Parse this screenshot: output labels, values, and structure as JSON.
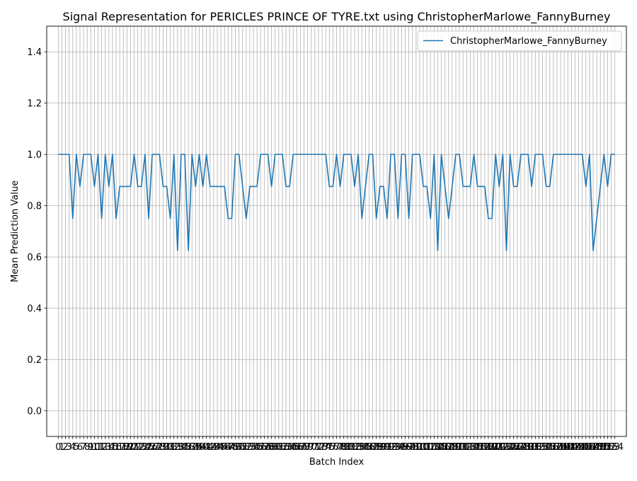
{
  "chart_data": {
    "type": "line",
    "title": "Signal Representation for PERICLES PRINCE OF TYRE.txt using ChristopherMarlowe_FannyBurney",
    "xlabel": "Batch Index",
    "ylabel": "Mean Prediction Value",
    "xlim": [
      -3.2,
      157.2
    ],
    "ylim": [
      -0.1,
      1.5
    ],
    "yticks": [
      0.0,
      0.2,
      0.4,
      0.6,
      0.8,
      1.0,
      1.2,
      1.4
    ],
    "ytick_labels": [
      "0.0",
      "0.2",
      "0.4",
      "0.6",
      "0.8",
      "1.0",
      "1.2",
      "1.4"
    ],
    "grid": true,
    "legend": "upper right",
    "color": "#1f77b4",
    "series": [
      {
        "name": "ChristopherMarlowe_FannyBurney",
        "values": [
          1.0,
          1.0,
          1.0,
          1.0,
          0.75,
          1.0,
          0.875,
          1.0,
          1.0,
          1.0,
          0.875,
          1.0,
          0.75,
          1.0,
          0.875,
          1.0,
          0.75,
          0.875,
          0.875,
          0.875,
          0.875,
          1.0,
          0.875,
          0.875,
          1.0,
          0.75,
          1.0,
          1.0,
          1.0,
          0.875,
          0.875,
          0.75,
          1.0,
          0.625,
          1.0,
          1.0,
          0.625,
          1.0,
          0.875,
          1.0,
          0.875,
          1.0,
          0.875,
          0.875,
          0.875,
          0.875,
          0.875,
          0.75,
          0.75,
          1.0,
          1.0,
          0.875,
          0.75,
          0.875,
          0.875,
          0.875,
          1.0,
          1.0,
          1.0,
          0.875,
          1.0,
          1.0,
          1.0,
          0.875,
          0.875,
          1.0,
          1.0,
          1.0,
          1.0,
          1.0,
          1.0,
          1.0,
          1.0,
          1.0,
          1.0,
          0.875,
          0.875,
          1.0,
          0.875,
          1.0,
          1.0,
          1.0,
          0.875,
          1.0,
          0.75,
          0.875,
          1.0,
          1.0,
          0.75,
          0.875,
          0.875,
          0.75,
          1.0,
          1.0,
          0.75,
          1.0,
          1.0,
          0.75,
          1.0,
          1.0,
          1.0,
          0.875,
          0.875,
          0.75,
          1.0,
          0.625,
          1.0,
          0.875,
          0.75,
          0.875,
          1.0,
          1.0,
          0.875,
          0.875,
          0.875,
          1.0,
          0.875,
          0.875,
          0.875,
          0.75,
          0.75,
          1.0,
          0.875,
          1.0,
          0.625,
          1.0,
          0.875,
          0.875,
          1.0,
          1.0,
          1.0,
          0.875,
          1.0,
          1.0,
          1.0,
          0.875,
          0.875,
          1.0,
          1.0,
          1.0,
          1.0,
          1.0,
          1.0,
          1.0,
          1.0,
          1.0,
          0.875,
          1.0,
          0.625,
          0.75,
          0.875,
          1.0,
          0.875,
          1.0,
          1.0
        ]
      }
    ]
  }
}
